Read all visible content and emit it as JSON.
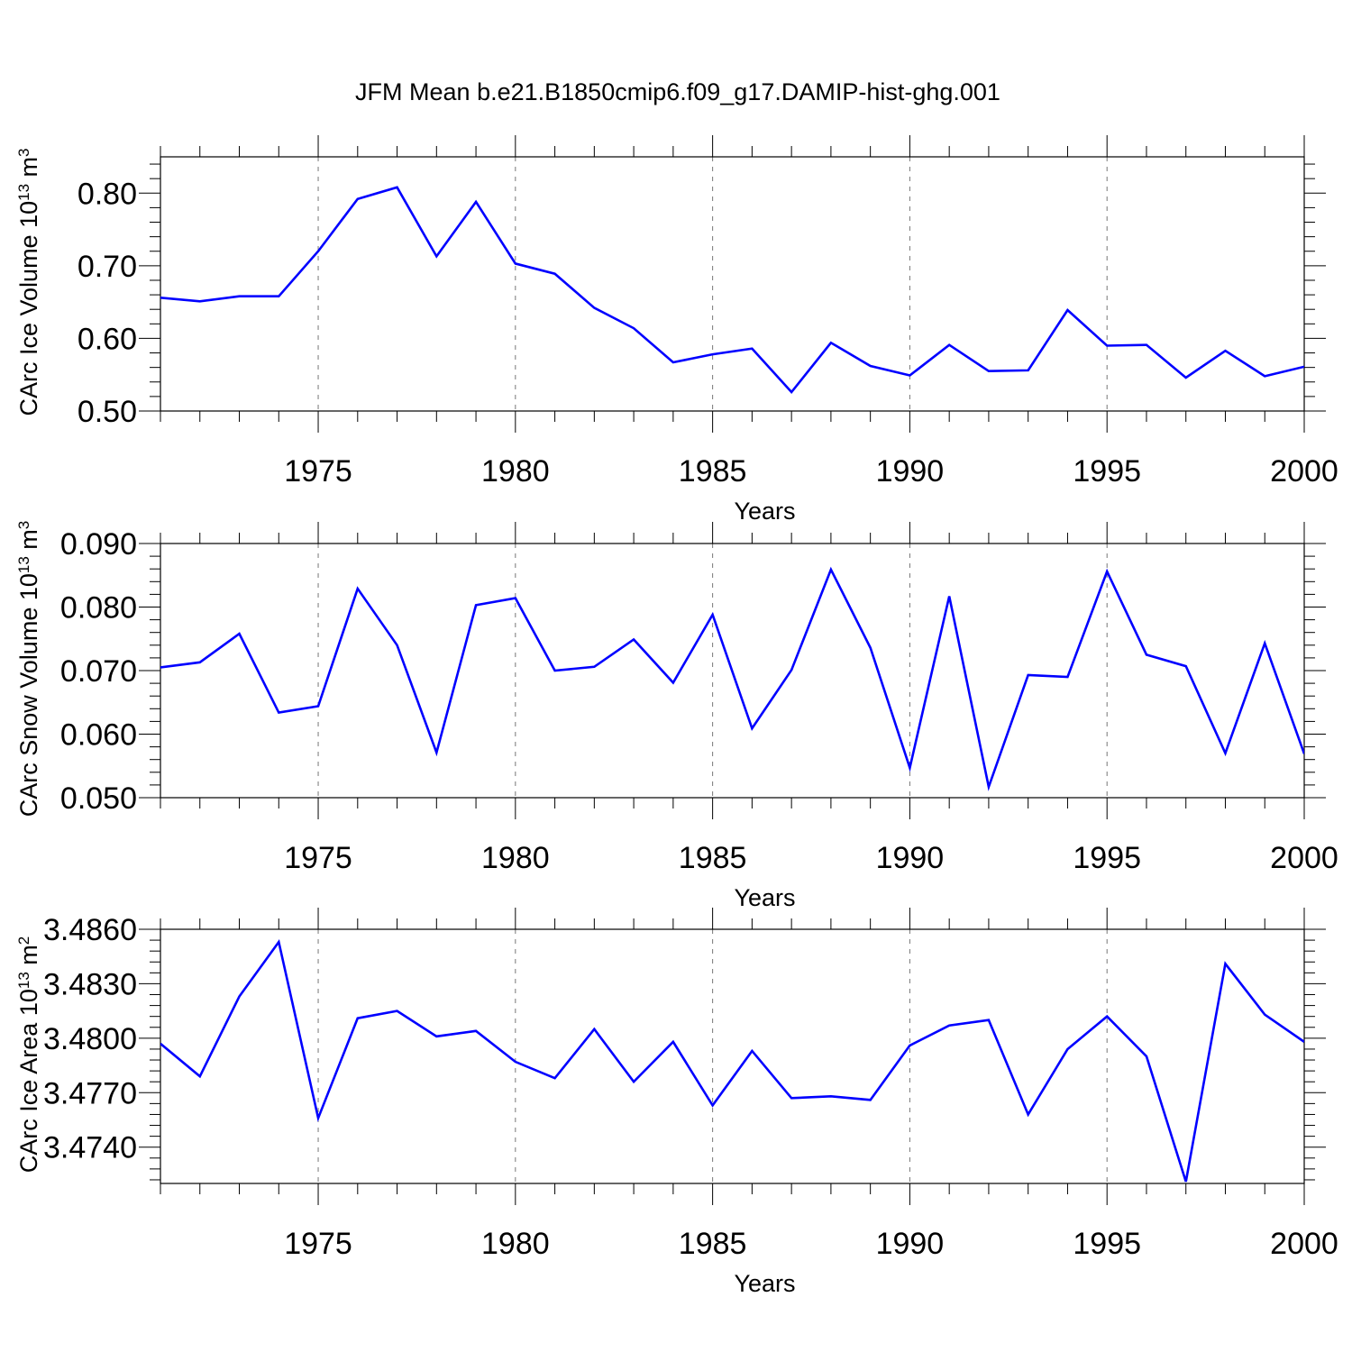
{
  "title": "JFM Mean b.e21.B1850cmip6.f09_g17.DAMIP-hist-ghg.001",
  "colors": {
    "line": "#0000ff",
    "axis": "#000000",
    "grid": "#777777"
  },
  "chart_data": [
    {
      "type": "line",
      "xlabel": "Years",
      "ylabel": {
        "main": "CArc Ice Volume 10",
        "exp1": "13",
        "mid": " m",
        "exp2": "3"
      },
      "xlim": [
        1971,
        2000
      ],
      "ylim": [
        0.5,
        0.85
      ],
      "grid": "vertical dashed at x major ticks",
      "x_ticks": [
        1975,
        1980,
        1985,
        1990,
        1995,
        2000
      ],
      "y_ticks": [
        "0.50",
        "0.60",
        "0.70",
        "0.80"
      ],
      "y_tick_values": [
        0.5,
        0.6,
        0.7,
        0.8
      ],
      "x": [
        1971,
        1972,
        1973,
        1974,
        1975,
        1976,
        1977,
        1978,
        1979,
        1980,
        1981,
        1982,
        1983,
        1984,
        1985,
        1986,
        1987,
        1988,
        1989,
        1990,
        1991,
        1992,
        1993,
        1994,
        1995,
        1996,
        1997,
        1998,
        1999,
        2000
      ],
      "y": [
        0.656,
        0.651,
        0.658,
        0.658,
        0.72,
        0.792,
        0.808,
        0.713,
        0.788,
        0.703,
        0.689,
        0.642,
        0.614,
        0.567,
        0.578,
        0.586,
        0.526,
        0.594,
        0.562,
        0.549,
        0.591,
        0.555,
        0.556,
        0.639,
        0.59,
        0.591,
        0.546,
        0.583,
        0.548,
        0.561
      ]
    },
    {
      "type": "line",
      "xlabel": "Years",
      "ylabel": {
        "main": "CArc Snow Volume 10",
        "exp1": "13",
        "mid": " m",
        "exp2": "3"
      },
      "xlim": [
        1971,
        2000
      ],
      "ylim": [
        0.05,
        0.09
      ],
      "grid": "vertical dashed at x major ticks",
      "x_ticks": [
        1975,
        1980,
        1985,
        1990,
        1995,
        2000
      ],
      "y_ticks": [
        "0.050",
        "0.060",
        "0.070",
        "0.080",
        "0.090"
      ],
      "y_tick_values": [
        0.05,
        0.06,
        0.07,
        0.08,
        0.09
      ],
      "x": [
        1971,
        1972,
        1973,
        1974,
        1975,
        1976,
        1977,
        1978,
        1979,
        1980,
        1981,
        1982,
        1983,
        1984,
        1985,
        1986,
        1987,
        1988,
        1989,
        1990,
        1991,
        1992,
        1993,
        1994,
        1995,
        1996,
        1997,
        1998,
        1999,
        2000
      ],
      "y": [
        0.0705,
        0.0713,
        0.0758,
        0.0634,
        0.0644,
        0.0829,
        0.074,
        0.0571,
        0.0803,
        0.0814,
        0.07,
        0.0706,
        0.0749,
        0.0681,
        0.0788,
        0.0609,
        0.0701,
        0.0859,
        0.0736,
        0.0547,
        0.0817,
        0.0517,
        0.0693,
        0.069,
        0.0856,
        0.0725,
        0.0707,
        0.057,
        0.0743,
        0.0569
      ]
    },
    {
      "type": "line",
      "xlabel": "Years",
      "ylabel": {
        "main": "CArc Ice Area 10",
        "exp1": "13",
        "mid": " m",
        "exp2": "2"
      },
      "xlim": [
        1971,
        2000
      ],
      "ylim": [
        3.472,
        3.486
      ],
      "grid": "vertical dashed at x major ticks",
      "x_ticks": [
        1975,
        1980,
        1985,
        1990,
        1995,
        2000
      ],
      "y_ticks": [
        "3.4740",
        "3.4770",
        "3.4800",
        "3.4830",
        "3.4860"
      ],
      "y_tick_values": [
        3.474,
        3.477,
        3.48,
        3.483,
        3.486
      ],
      "x": [
        1971,
        1972,
        1973,
        1974,
        1975,
        1976,
        1977,
        1978,
        1979,
        1980,
        1981,
        1982,
        1983,
        1984,
        1985,
        1986,
        1987,
        1988,
        1989,
        1990,
        1991,
        1992,
        1993,
        1994,
        1995,
        1996,
        1997,
        1998,
        1999,
        2000
      ],
      "y": [
        3.4797,
        3.4779,
        3.4823,
        3.4853,
        3.4756,
        3.4811,
        3.4815,
        3.4801,
        3.4804,
        3.4787,
        3.4778,
        3.4805,
        3.4776,
        3.4798,
        3.4763,
        3.4793,
        3.4767,
        3.4768,
        3.4766,
        3.4796,
        3.4807,
        3.481,
        3.4758,
        3.4794,
        3.4812,
        3.479,
        3.4721,
        3.4841,
        3.4813,
        3.4798
      ]
    }
  ]
}
